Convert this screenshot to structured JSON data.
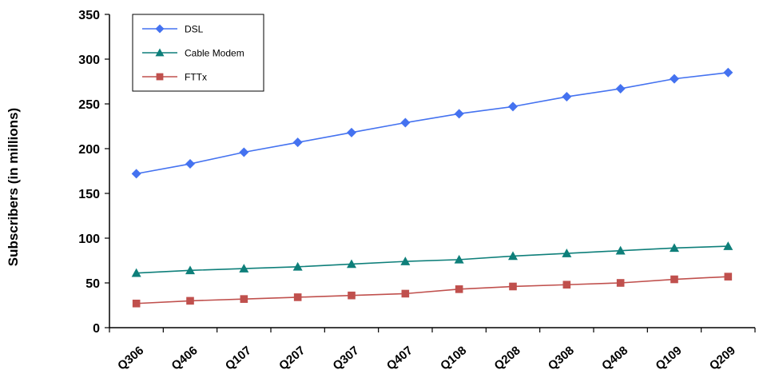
{
  "chart_data": {
    "type": "line",
    "title": "",
    "xlabel": "",
    "ylabel": "Subscribers (in millions)",
    "categories": [
      "Q306",
      "Q406",
      "Q107",
      "Q207",
      "Q307",
      "Q407",
      "Q108",
      "Q208",
      "Q308",
      "Q408",
      "Q109",
      "Q209"
    ],
    "ylim": [
      0,
      350
    ],
    "yticks": [
      0,
      50,
      100,
      150,
      200,
      250,
      300,
      350
    ],
    "grid": false,
    "legend": "top-left",
    "series": [
      {
        "name": "DSL",
        "color": "#4472F0",
        "marker": "diamond",
        "values": [
          172,
          183,
          196,
          207,
          218,
          229,
          239,
          247,
          258,
          267,
          278,
          285
        ]
      },
      {
        "name": "Cable Modem",
        "color": "#0E7F7A",
        "marker": "triangle",
        "values": [
          61,
          64,
          66,
          68,
          71,
          74,
          76,
          80,
          83,
          86,
          89,
          91
        ]
      },
      {
        "name": "FTTx",
        "color": "#C0504D",
        "marker": "square",
        "values": [
          27,
          30,
          32,
          34,
          36,
          38,
          43,
          46,
          48,
          50,
          54,
          57
        ]
      }
    ]
  }
}
